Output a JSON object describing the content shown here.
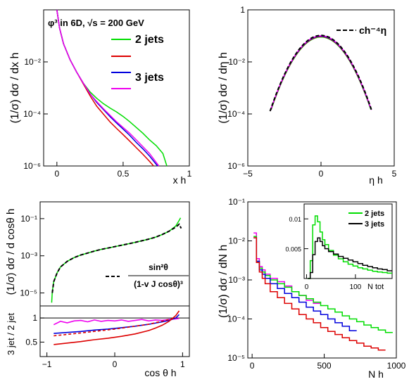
{
  "chart_data": [
    {
      "type": "line",
      "panel": "top-left",
      "title": "φ³ in 6D, √s = 200 GeV",
      "xlabel": "x h",
      "ylabel": "(1/σ) dσ / dx h",
      "xlim": [
        -0.1,
        1.0
      ],
      "ylim": [
        1e-06,
        1
      ],
      "yscale": "log",
      "xticks": [
        "0",
        "0.5",
        "1"
      ],
      "yticks": [
        "10⁻⁶",
        "10⁻⁴",
        "10⁻²"
      ],
      "legend": {
        "position": "top-right",
        "entries": [
          "2 jets",
          "",
          "3 jets",
          ""
        ]
      },
      "series": [
        {
          "name": "2 jets",
          "color": "#00dd00",
          "x": [
            0.0,
            0.02,
            0.05,
            0.1,
            0.15,
            0.2,
            0.25,
            0.3,
            0.35,
            0.4,
            0.45,
            0.5,
            0.55,
            0.6,
            0.65,
            0.7,
            0.75,
            0.8,
            0.83
          ],
          "y": [
            1.0,
            0.2,
            0.05,
            0.012,
            0.004,
            0.0015,
            0.0007,
            0.0004,
            0.00025,
            0.00017,
            0.00012,
            8e-05,
            5e-05,
            3e-05,
            1.8e-05,
            1e-05,
            6e-06,
            3e-06,
            1e-06
          ]
        },
        {
          "color": "#dd0000",
          "x": [
            0.0,
            0.02,
            0.05,
            0.1,
            0.15,
            0.2,
            0.25,
            0.3,
            0.35,
            0.4,
            0.45,
            0.5,
            0.55,
            0.6,
            0.65,
            0.7,
            0.73
          ],
          "y": [
            1.0,
            0.2,
            0.05,
            0.012,
            0.004,
            0.0014,
            0.0005,
            0.0002,
            0.0001,
            5e-05,
            2.8e-05,
            1.6e-05,
            9e-06,
            5e-06,
            2.8e-06,
            1.5e-06,
            1e-06
          ]
        },
        {
          "name": "3 jets",
          "color": "#0000dd",
          "x": [
            0.0,
            0.02,
            0.05,
            0.1,
            0.15,
            0.2,
            0.25,
            0.3,
            0.35,
            0.4,
            0.45,
            0.5,
            0.55,
            0.6,
            0.65,
            0.7,
            0.76
          ],
          "y": [
            1.0,
            0.2,
            0.05,
            0.012,
            0.004,
            0.0015,
            0.0006,
            0.00028,
            0.00015,
            8e-05,
            4.5e-05,
            2.6e-05,
            1.5e-05,
            8e-06,
            4.5e-06,
            2.4e-06,
            1e-06
          ]
        },
        {
          "color": "#ee00ee",
          "x": [
            0.0,
            0.02,
            0.05,
            0.1,
            0.15,
            0.2,
            0.25,
            0.3,
            0.35,
            0.4,
            0.45,
            0.5,
            0.55,
            0.6,
            0.65,
            0.7,
            0.77
          ],
          "y": [
            1.0,
            0.2,
            0.05,
            0.012,
            0.004,
            0.0015,
            0.0006,
            0.0003,
            0.00016,
            9e-05,
            5e-05,
            3e-05,
            1.8e-05,
            1e-05,
            5.5e-06,
            3e-06,
            1e-06
          ]
        }
      ]
    },
    {
      "type": "line",
      "panel": "top-right",
      "xlabel": "η h",
      "ylabel": "(1/σ) dσ / dη h",
      "xlim": [
        -5,
        5
      ],
      "ylim": [
        1e-06,
        1
      ],
      "yscale": "log",
      "xticks": [
        "−5",
        "0",
        "5"
      ],
      "yticks": [
        "10⁻⁶",
        "10⁻⁴",
        "10⁻²",
        "1"
      ],
      "legend": {
        "position": "top-right",
        "entries": [
          "ch⁻⁴η"
        ]
      },
      "gaussian_peak": 0.09,
      "gaussian_sigma": 0.95,
      "eta_cut": 3.4,
      "series_colors": [
        "#00dd00",
        "#dd0000",
        "#0000dd",
        "#ee00ee",
        "#000000"
      ]
    },
    {
      "type": "line",
      "panel": "middle-left",
      "ylabel": "(1/σ) dσ / d cosθ h",
      "xlim": [
        -1.1,
        1.1
      ],
      "ylim": [
        2e-06,
        0.8
      ],
      "yscale": "log",
      "yticks": [
        "10⁻⁵",
        "10⁻³",
        "10⁻¹"
      ],
      "legend": {
        "position": "bottom-right",
        "numerator": "sin²θ",
        "denominator": "(1-v J cosθ)³"
      },
      "series": [
        {
          "color": "#00dd00",
          "x": [
            -0.93,
            -0.92,
            -0.9,
            -0.85,
            -0.8,
            -0.7,
            -0.6,
            -0.5,
            -0.4,
            -0.3,
            -0.2,
            -0.1,
            0.0,
            0.1,
            0.2,
            0.3,
            0.4,
            0.5,
            0.6,
            0.7,
            0.8,
            0.9,
            0.95,
            0.97
          ],
          "y": [
            3e-06,
            1.2e-05,
            4e-05,
            0.00012,
            0.00025,
            0.0005,
            0.0008,
            0.0011,
            0.0014,
            0.0018,
            0.0022,
            0.0026,
            0.0031,
            0.0037,
            0.0044,
            0.0053,
            0.0064,
            0.0079,
            0.01,
            0.014,
            0.021,
            0.04,
            0.08,
            0.11
          ]
        },
        {
          "color": "#000000",
          "x": [
            -0.92,
            -0.9,
            -0.85,
            -0.8,
            -0.7,
            -0.6,
            -0.5,
            -0.4,
            -0.3,
            -0.2,
            -0.1,
            0.0,
            0.1,
            0.2,
            0.3,
            0.4,
            0.5,
            0.6,
            0.7,
            0.8,
            0.9,
            0.95,
            0.98
          ],
          "y": [
            1e-05,
            4e-05,
            0.00012,
            0.00025,
            0.0005,
            0.0008,
            0.0011,
            0.0014,
            0.0018,
            0.0022,
            0.0026,
            0.0031,
            0.0037,
            0.0044,
            0.0053,
            0.0064,
            0.0079,
            0.01,
            0.014,
            0.021,
            0.035,
            0.05,
            0.03
          ]
        }
      ]
    },
    {
      "type": "line",
      "panel": "ratio",
      "xlabel": "cos θ h",
      "ylabel": "3 jet / 2 jet",
      "xlim": [
        -1.1,
        1.1
      ],
      "ylim": [
        0.2,
        1.25
      ],
      "xticks": [
        "−1",
        "0",
        "1"
      ],
      "yticks": [
        "0.5",
        "1"
      ],
      "series": [
        {
          "color": "#ee00ee",
          "x": [
            -0.9,
            -0.8,
            -0.7,
            -0.6,
            -0.5,
            -0.4,
            -0.3,
            -0.2,
            -0.1,
            0.0,
            0.1,
            0.2,
            0.3,
            0.4,
            0.5,
            0.6,
            0.7,
            0.8,
            0.9,
            0.95
          ],
          "y": [
            0.86,
            0.93,
            0.9,
            0.94,
            0.95,
            0.92,
            0.96,
            0.93,
            0.95,
            0.94,
            0.96,
            0.93,
            0.95,
            0.97,
            0.94,
            0.96,
            0.95,
            0.97,
            0.98,
            0.99
          ]
        },
        {
          "color": "#0000dd",
          "x": [
            -0.9,
            -0.7,
            -0.5,
            -0.3,
            -0.1,
            0.1,
            0.3,
            0.5,
            0.7,
            0.8,
            0.9,
            0.95
          ],
          "y": [
            0.68,
            0.7,
            0.72,
            0.75,
            0.77,
            0.8,
            0.83,
            0.87,
            0.92,
            0.95,
            1.0,
            1.07
          ]
        },
        {
          "color": "#dd0000",
          "x": [
            -0.9,
            -0.7,
            -0.5,
            -0.3,
            -0.1,
            0.1,
            0.3,
            0.5,
            0.6,
            0.7,
            0.8,
            0.9,
            0.95
          ],
          "y": [
            0.45,
            0.48,
            0.51,
            0.55,
            0.58,
            0.62,
            0.67,
            0.74,
            0.79,
            0.85,
            0.93,
            1.05,
            1.15
          ]
        },
        {
          "color": "#dd0000",
          "dashed": true,
          "x": [
            -0.9,
            -0.5,
            0.0,
            0.5,
            0.9
          ],
          "y": [
            0.63,
            0.69,
            0.77,
            0.87,
            1.0
          ]
        }
      ]
    },
    {
      "type": "line",
      "panel": "bottom-right",
      "xlabel": "N h",
      "ylabel": "(1/σ) dσ / dN h",
      "xlim": [
        -30,
        1000
      ],
      "ylim": [
        1e-05,
        0.1
      ],
      "yscale": "log",
      "xticks": [
        "0",
        "500",
        "1000"
      ],
      "yticks": [
        "10⁻⁵",
        "10⁻⁴",
        "10⁻³",
        "10⁻²",
        "10⁻¹"
      ],
      "series": [
        {
          "color": "#ee00ee",
          "x": [
            20,
            40,
            60,
            80,
            100,
            150,
            200,
            250,
            300,
            350,
            400,
            450
          ],
          "y": [
            0.016,
            0.0035,
            0.0022,
            0.0018,
            0.0014,
            0.0011,
            0.0009,
            0.0007,
            0.0005,
            0.0004,
            0.0003,
            0.00025
          ]
        },
        {
          "color": "#00dd00",
          "x": [
            20,
            40,
            60,
            80,
            100,
            150,
            200,
            250,
            300,
            350,
            400,
            450,
            500,
            550,
            600,
            650,
            700,
            750,
            800,
            850,
            900,
            950
          ],
          "y": [
            0.013,
            0.003,
            0.002,
            0.0016,
            0.0013,
            0.001,
            0.0008,
            0.00065,
            0.0005,
            0.0004,
            0.00033,
            0.00027,
            0.00022,
            0.00018,
            0.00015,
            0.00012,
            0.0001,
            8.5e-05,
            7e-05,
            6e-05,
            5.2e-05,
            4.5e-05
          ]
        },
        {
          "color": "#0000dd",
          "x": [
            20,
            40,
            60,
            80,
            100,
            150,
            200,
            250,
            300,
            350,
            400,
            450,
            500,
            550,
            600,
            650,
            700
          ],
          "y": [
            0.012,
            0.003,
            0.0018,
            0.0014,
            0.0011,
            0.0008,
            0.0006,
            0.00045,
            0.00035,
            0.00027,
            0.0002,
            0.00016,
            0.00013,
            0.0001,
            8e-05,
            6.5e-05,
            5e-05
          ]
        },
        {
          "color": "#dd0000",
          "x": [
            20,
            40,
            60,
            80,
            100,
            150,
            200,
            250,
            300,
            350,
            400,
            450,
            500,
            550,
            600,
            650,
            700,
            750,
            800,
            850,
            900
          ],
          "y": [
            0.012,
            0.0028,
            0.0016,
            0.0011,
            0.0008,
            0.0005,
            0.00035,
            0.00025,
            0.00018,
            0.00013,
            0.0001,
            8e-05,
            6e-05,
            4.8e-05,
            4e-05,
            3.3e-05,
            2.8e-05,
            2.4e-05,
            2e-05,
            1.8e-05,
            1.6e-05
          ]
        }
      ],
      "inset": {
        "xlabel": "N tot",
        "xlim": [
          -5,
          175
        ],
        "ylim": [
          0,
          0.0125
        ],
        "xticks": [
          "0",
          "100"
        ],
        "yticks": [
          "0.005",
          "0.01"
        ],
        "legend": {
          "position": "top-right",
          "entries": [
            "2 jets",
            "3 jets"
          ]
        },
        "series": [
          {
            "name": "2 jets",
            "color": "#00dd00",
            "x": [
              5,
              10,
              15,
              20,
              25,
              30,
              35,
              40,
              50,
              60,
              70,
              80,
              90,
              100,
              110,
              120,
              130,
              140,
              150,
              160,
              170
            ],
            "y": [
              0.0,
              0.003,
              0.009,
              0.0105,
              0.0095,
              0.0078,
              0.0065,
              0.0057,
              0.0047,
              0.0039,
              0.0033,
              0.0028,
              0.0024,
              0.0021,
              0.0018,
              0.0016,
              0.0014,
              0.0012,
              0.0011,
              0.001,
              0.0009
            ]
          },
          {
            "name": "3 jets",
            "color": "#000000",
            "x": [
              5,
              10,
              15,
              20,
              25,
              30,
              35,
              40,
              50,
              60,
              70,
              80,
              90,
              100,
              110,
              120,
              130,
              140,
              150,
              160,
              170
            ],
            "y": [
              0.0,
              0.001,
              0.004,
              0.0062,
              0.0068,
              0.0062,
              0.0055,
              0.005,
              0.0045,
              0.0041,
              0.0037,
              0.0034,
              0.0031,
              0.0028,
              0.0025,
              0.0022,
              0.002,
              0.0018,
              0.0016,
              0.0015,
              0.0013
            ]
          }
        ]
      }
    }
  ]
}
